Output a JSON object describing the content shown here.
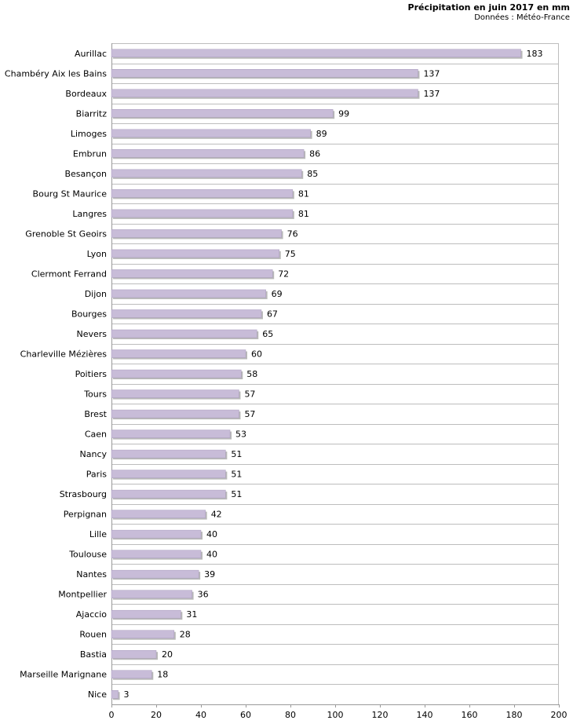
{
  "title": "Précipitation en juin 2017 en mm",
  "subtitle": "Données : Météo-France",
  "chart_data": {
    "type": "bar",
    "orientation": "horizontal",
    "title": "Précipitation en juin 2017 en mm",
    "subtitle": "Données : Météo-France",
    "xlabel": "",
    "ylabel": "",
    "xlim": [
      0,
      200
    ],
    "x_ticks": [
      0,
      20,
      40,
      60,
      80,
      100,
      120,
      140,
      160,
      180,
      200
    ],
    "grid": "horizontal",
    "bar_color": "#c8bcd8",
    "categories": [
      "Aurillac",
      "Chambéry Aix les Bains",
      "Bordeaux",
      "Biarritz",
      "Limoges",
      "Embrun",
      "Besançon",
      "Bourg St Maurice",
      "Langres",
      "Grenoble St Geoirs",
      "Lyon",
      "Clermont Ferrand",
      "Dijon",
      "Bourges",
      "Nevers",
      "Charleville Mézières",
      "Poitiers",
      "Tours",
      "Brest",
      "Caen",
      "Nancy",
      "Paris",
      "Strasbourg",
      "Perpignan",
      "Lille",
      "Toulouse",
      "Nantes",
      "Montpellier",
      "Ajaccio",
      "Rouen",
      "Bastia",
      "Marseille Marignane",
      "Nice"
    ],
    "values": [
      183,
      137,
      137,
      99,
      89,
      86,
      85,
      81,
      81,
      76,
      75,
      72,
      69,
      67,
      65,
      60,
      58,
      57,
      57,
      53,
      51,
      51,
      51,
      42,
      40,
      40,
      39,
      36,
      31,
      28,
      20,
      18,
      3
    ]
  }
}
